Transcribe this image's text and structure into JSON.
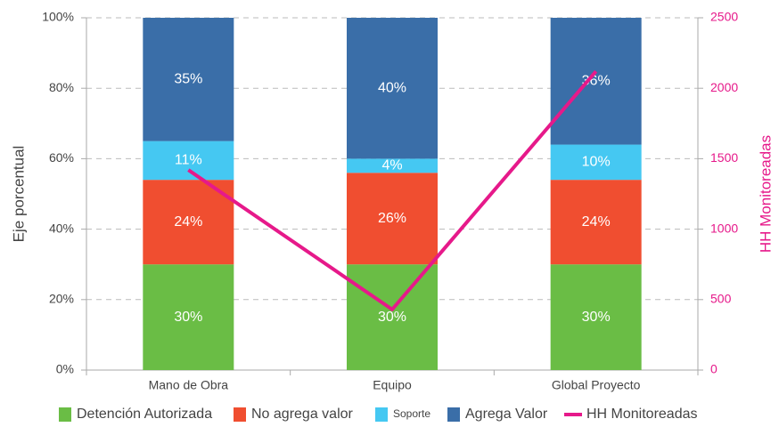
{
  "chart_data": {
    "type": "bar",
    "stacked": true,
    "categories": [
      "Mano de Obra",
      "Equipo",
      "Global Proyecto"
    ],
    "ylabel": "Eje porcentual",
    "y2label": "HH Monitoreadas",
    "ylim": [
      0,
      100
    ],
    "yticks": [
      {
        "value": 0,
        "label": "0%"
      },
      {
        "value": 20,
        "label": "20%"
      },
      {
        "value": 40,
        "label": "40%"
      },
      {
        "value": 60,
        "label": "60%"
      },
      {
        "value": 80,
        "label": "80%"
      },
      {
        "value": 100,
        "label": "100%"
      }
    ],
    "y2lim": [
      0,
      2500
    ],
    "y2ticks": [
      0,
      500,
      1000,
      1500,
      2000,
      2500
    ],
    "grid": true,
    "legend": "bottom",
    "series": [
      {
        "name": "Detención Autorizada",
        "color": "#6abd45",
        "values": [
          30,
          30,
          30
        ],
        "value_labels": [
          "30%",
          "30%",
          "30%"
        ]
      },
      {
        "name": "No agrega valor",
        "color": "#f04e30",
        "values": [
          24,
          26,
          24
        ],
        "value_labels": [
          "24%",
          "26%",
          "24%"
        ]
      },
      {
        "name": "Soporte",
        "color": "#45c8f2",
        "values": [
          11,
          4,
          10
        ],
        "value_labels": [
          "11%",
          "4%",
          "10%"
        ]
      },
      {
        "name": "Agrega Valor",
        "color": "#3a6ea8",
        "values": [
          35,
          40,
          36
        ],
        "value_labels": [
          "35%",
          "40%",
          "36%"
        ]
      },
      {
        "name": "HH Monitoreadas",
        "color": "#e6198a",
        "type": "line",
        "axis": "y2",
        "values": [
          1420,
          430,
          2120
        ]
      }
    ]
  }
}
